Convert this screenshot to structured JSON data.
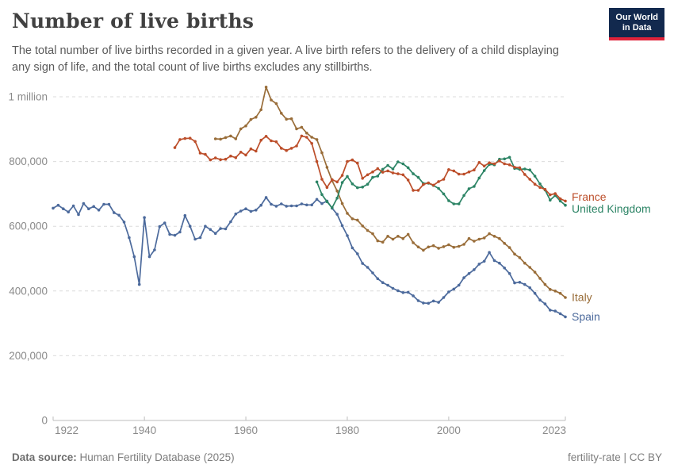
{
  "header": {
    "title": "Number of live births",
    "subtitle": "The total number of live births recorded in a given year. A live birth refers to the delivery of a child displaying\nany sign of life, and the total count of live births excludes any stillbirths."
  },
  "logo": {
    "text": "Our World\nin Data",
    "bg_color": "#12294e",
    "bar_color": "#e0233a"
  },
  "footer": {
    "source_label": "Data source:",
    "source_value": "Human Fertility Database (2025)",
    "note": "fertility-rate | CC BY"
  },
  "chart_data": {
    "type": "line",
    "title": "Number of live births",
    "xlabel": "",
    "ylabel": "",
    "xlim": [
      1922,
      2023
    ],
    "ylim": [
      0,
      1030000
    ],
    "grid": true,
    "legend_position": "line-end-labels-right",
    "markers": true,
    "x_ticks": [
      1922,
      1940,
      1960,
      1980,
      2000,
      2023
    ],
    "y_ticks": [
      {
        "value": 0,
        "label": "0"
      },
      {
        "value": 200000,
        "label": "200,000"
      },
      {
        "value": 400000,
        "label": "400,000"
      },
      {
        "value": 600000,
        "label": "600,000"
      },
      {
        "value": 800000,
        "label": "800,000"
      },
      {
        "value": 1000000,
        "label": "1 million"
      }
    ],
    "series": [
      {
        "name": "France",
        "color": "#bc4e2a",
        "start_year": 1946,
        "values": [
          843000,
          868000,
          871000,
          872000,
          862000,
          826000,
          822000,
          805000,
          811000,
          806000,
          807000,
          817000,
          812000,
          829000,
          820000,
          839000,
          832000,
          866000,
          878000,
          864000,
          861000,
          841000,
          834000,
          841000,
          848000,
          879000,
          875000,
          856000,
          800000,
          745000,
          720000,
          744000,
          737000,
          757000,
          800000,
          805000,
          795000,
          748000,
          759000,
          768000,
          778000,
          767000,
          771000,
          765000,
          762000,
          759000,
          743000,
          711000,
          711000,
          729000,
          734000,
          727000,
          738000,
          745000,
          775000,
          771000,
          761000,
          761000,
          768000,
          774000,
          797000,
          786000,
          796000,
          793000,
          802000,
          793000,
          790000,
          782000,
          781000,
          760000,
          745000,
          730000,
          720000,
          714000,
          697000,
          701000,
          685000,
          678000
        ]
      },
      {
        "name": "United Kingdom",
        "color": "#2c8465",
        "start_year": 1974,
        "values": [
          737000,
          698000,
          676000,
          657000,
          687000,
          735000,
          754000,
          731000,
          719000,
          721000,
          730000,
          751000,
          755000,
          776000,
          788000,
          777000,
          799000,
          793000,
          781000,
          762000,
          751000,
          732000,
          733000,
          726000,
          717000,
          700000,
          679000,
          669000,
          669000,
          695000,
          716000,
          723000,
          749000,
          772000,
          791000,
          790000,
          807000,
          808000,
          813000,
          779000,
          776000,
          777000,
          774000,
          755000,
          731000,
          712000,
          681000,
          695000,
          678000,
          665000
        ]
      },
      {
        "name": "Italy",
        "color": "#996d39",
        "start_year": 1954,
        "values": [
          870000,
          869000,
          874000,
          879000,
          870000,
          901000,
          910000,
          930000,
          937000,
          960000,
          1030000,
          990000,
          979000,
          949000,
          931000,
          932000,
          901000,
          906000,
          888000,
          875000,
          868000,
          827000,
          782000,
          741000,
          709000,
          670000,
          640000,
          623000,
          619000,
          601000,
          587000,
          577000,
          555000,
          551000,
          569000,
          560000,
          569000,
          562000,
          575000,
          549000,
          536000,
          526000,
          536000,
          540000,
          532000,
          537000,
          543000,
          535000,
          538000,
          544000,
          562000,
          554000,
          560000,
          564000,
          577000,
          569000,
          562000,
          547000,
          534000,
          514000,
          503000,
          486000,
          473000,
          458000,
          439000,
          420000,
          405000,
          400000,
          393000,
          380000
        ]
      },
      {
        "name": "Spain",
        "color": "#4c6a9c",
        "start_year": 1922,
        "values": [
          656000,
          665000,
          654000,
          644000,
          663000,
          636000,
          670000,
          654000,
          661000,
          650000,
          668000,
          668000,
          642000,
          634000,
          613000,
          565000,
          506000,
          420000,
          627000,
          506000,
          527000,
          599000,
          610000,
          575000,
          572000,
          582000,
          633000,
          600000,
          560000,
          565000,
          600000,
          590000,
          578000,
          593000,
          592000,
          614000,
          638000,
          647000,
          654000,
          646000,
          650000,
          665000,
          689000,
          668000,
          662000,
          669000,
          662000,
          663000,
          663000,
          669000,
          666000,
          666000,
          683000,
          670000,
          678000,
          656000,
          637000,
          602000,
          571000,
          533000,
          515000,
          485000,
          473000,
          456000,
          438000,
          426000,
          418000,
          408000,
          401000,
          395000,
          396000,
          385000,
          370000,
          363000,
          362000,
          369000,
          365000,
          380000,
          397000,
          406000,
          418000,
          441000,
          454000,
          466000,
          483000,
          492000,
          519000,
          494000,
          486000,
          471000,
          454000,
          425000,
          427000,
          420000,
          410000,
          393000,
          372000,
          360000,
          341000,
          338000,
          330000,
          320000
        ]
      }
    ]
  }
}
